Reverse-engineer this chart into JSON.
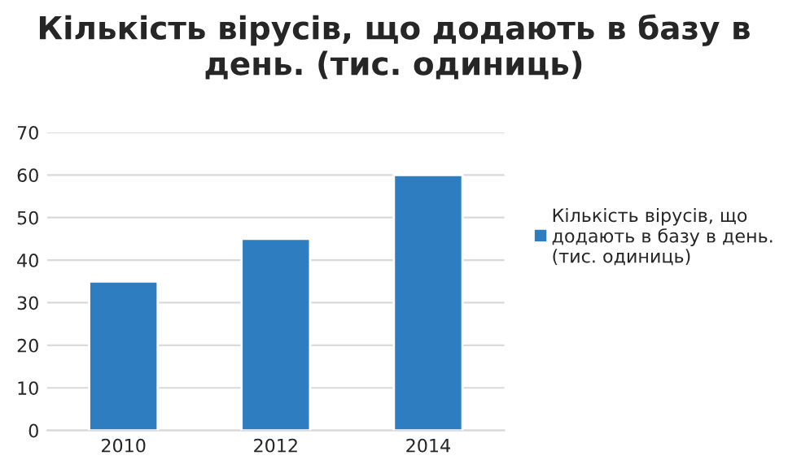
{
  "chart_data": {
    "type": "bar",
    "title": "Кількість вірусів, що додають в базу в день. (тис. одиниць)",
    "categories": [
      "2010",
      "2012",
      "2014"
    ],
    "series": [
      {
        "name": "Кількість вірусів, що додають в базу в день. (тис. одиниць)",
        "color": "#2e7dc1",
        "values": [
          35,
          45,
          60
        ]
      }
    ],
    "ylim": [
      0,
      70
    ],
    "yticks": [
      0,
      10,
      20,
      30,
      40,
      50,
      60,
      70
    ],
    "grid": "y",
    "legend": "right"
  }
}
